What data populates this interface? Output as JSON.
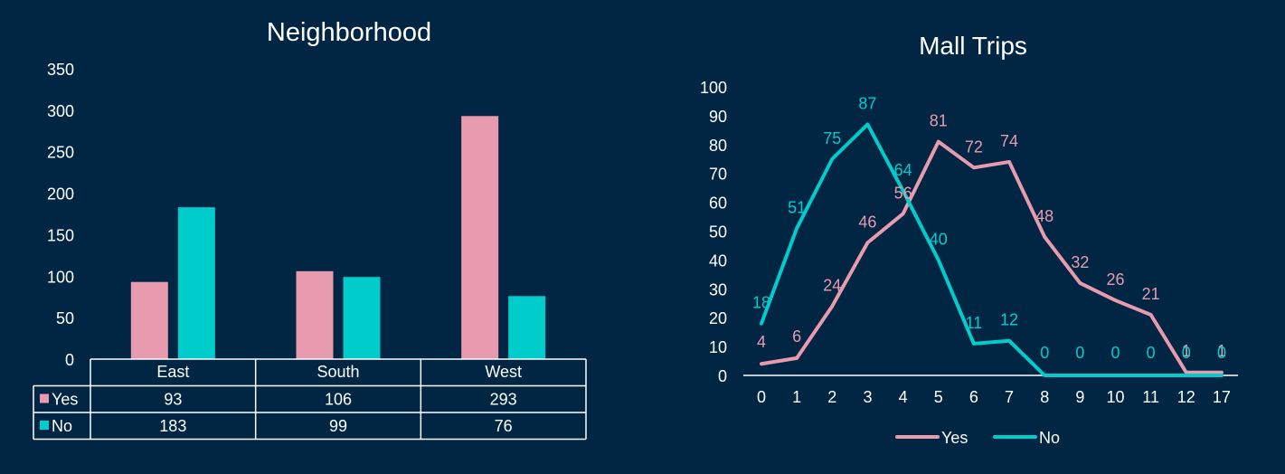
{
  "colors": {
    "background": "#002644",
    "yes": "#e89aae",
    "no": "#00cccc",
    "text": "#ffffff",
    "line": "#ffffff"
  },
  "chart_data": [
    {
      "type": "bar",
      "title": "Neighborhood",
      "categories": [
        "East",
        "South",
        "West"
      ],
      "ylim": [
        0,
        350
      ],
      "yticks": [
        0,
        50,
        100,
        150,
        200,
        250,
        300,
        350
      ],
      "legend": "data-table",
      "series": [
        {
          "name": "Yes",
          "color": "#e89aae",
          "values": [
            93,
            106,
            293
          ]
        },
        {
          "name": "No",
          "color": "#00cccc",
          "values": [
            183,
            99,
            76
          ]
        }
      ]
    },
    {
      "type": "line",
      "title": "Mall Trips",
      "x": [
        "0",
        "1",
        "2",
        "3",
        "4",
        "5",
        "6",
        "7",
        "8",
        "9",
        "10",
        "11",
        "12",
        "17"
      ],
      "ylim": [
        0,
        100
      ],
      "yticks": [
        0,
        10,
        20,
        30,
        40,
        50,
        60,
        70,
        80,
        90,
        100
      ],
      "legend": "bottom",
      "series": [
        {
          "name": "Yes",
          "color": "#e89aae",
          "values": [
            4,
            6,
            24,
            46,
            56,
            81,
            72,
            74,
            48,
            32,
            26,
            21,
            1,
            1
          ]
        },
        {
          "name": "No",
          "color": "#00cccc",
          "values": [
            18,
            51,
            75,
            87,
            64,
            40,
            11,
            12,
            0,
            0,
            0,
            0,
            0,
            0
          ]
        }
      ]
    }
  ]
}
